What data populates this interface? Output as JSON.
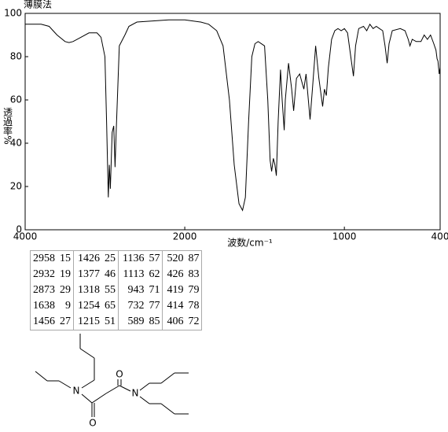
{
  "chart_data": {
    "type": "line",
    "title": "薄膜法",
    "xlabel": "波数/cm⁻¹",
    "ylabel": "透過率%",
    "x": [
      4000,
      3800,
      3700,
      3600,
      3500,
      3450,
      3400,
      3300,
      3200,
      3100,
      3050,
      3000,
      2980,
      2958,
      2945,
      2932,
      2910,
      2890,
      2873,
      2860,
      2820,
      2750,
      2700,
      2600,
      2400,
      2200,
      2000,
      1900,
      1850,
      1800,
      1760,
      1720,
      1690,
      1660,
      1638,
      1620,
      1600,
      1580,
      1560,
      1540,
      1500,
      1480,
      1465,
      1456,
      1445,
      1435,
      1426,
      1415,
      1400,
      1390,
      1377,
      1370,
      1350,
      1330,
      1318,
      1300,
      1280,
      1265,
      1254,
      1240,
      1215,
      1200,
      1180,
      1160,
      1136,
      1125,
      1113,
      1100,
      1080,
      1060,
      1040,
      1020,
      1000,
      980,
      960,
      943,
      930,
      910,
      880,
      860,
      840,
      820,
      800,
      780,
      760,
      745,
      732,
      720,
      700,
      650,
      620,
      600,
      589,
      575,
      550,
      520,
      500,
      480,
      460,
      440,
      426,
      419,
      414,
      406,
      400
    ],
    "values": [
      95,
      95,
      94,
      90,
      87,
      86.5,
      87,
      89,
      91,
      91,
      89,
      80,
      50,
      15,
      30,
      19,
      45,
      48,
      29,
      45,
      85,
      90,
      94,
      96,
      96.5,
      97,
      97,
      96,
      95,
      92,
      85,
      60,
      30,
      12,
      9,
      15,
      50,
      80,
      86,
      87,
      85,
      60,
      32,
      27,
      33,
      30,
      25,
      50,
      74,
      60,
      46,
      60,
      77,
      65,
      55,
      70,
      72,
      68,
      65,
      72,
      51,
      65,
      85,
      70,
      57,
      65,
      62,
      75,
      88,
      92,
      93,
      92,
      93,
      91,
      80,
      71,
      85,
      93,
      94,
      92,
      95,
      93,
      94,
      93,
      92,
      85,
      77,
      86,
      92,
      93,
      92,
      88,
      85,
      88,
      87,
      87,
      90,
      88,
      90,
      86,
      83,
      79,
      78,
      72,
      75
    ],
    "color": "#000000",
    "xlim": [
      4000,
      400
    ],
    "xticks": [
      4000,
      2000,
      1000,
      400
    ],
    "x_scale_break": 2000,
    "x_scale_ratio": 2,
    "ylim": [
      0,
      100
    ],
    "yticks": [
      0,
      20,
      40,
      60,
      80,
      100
    ]
  },
  "peak_table": {
    "rows": [
      [
        2958,
        15,
        1426,
        25,
        1136,
        57,
        520,
        87
      ],
      [
        2932,
        19,
        1377,
        46,
        1113,
        62,
        426,
        83
      ],
      [
        2873,
        29,
        1318,
        55,
        943,
        71,
        419,
        79
      ],
      [
        1638,
        9,
        1254,
        65,
        732,
        77,
        414,
        78
      ],
      [
        1456,
        27,
        1215,
        51,
        589,
        85,
        406,
        72
      ]
    ]
  },
  "structure": {
    "atoms": [
      "N",
      "N",
      "O",
      "O"
    ]
  }
}
